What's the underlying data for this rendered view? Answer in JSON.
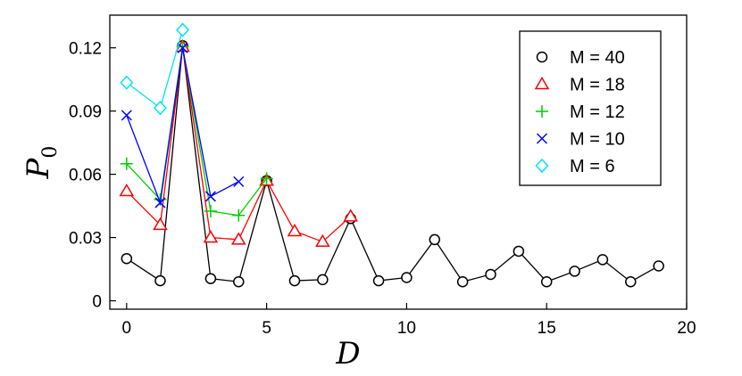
{
  "chart_data": {
    "type": "line",
    "xlabel": "D",
    "ylabel": {
      "main": "P",
      "sub": "0"
    },
    "xlim": [
      -0.6,
      20
    ],
    "ylim": [
      -0.004,
      0.1355
    ],
    "xticks": [
      0,
      5,
      10,
      15,
      20
    ],
    "xtick_labels": [
      "0",
      "5",
      "10",
      "15",
      "20"
    ],
    "yticks": [
      0,
      0.03,
      0.06,
      0.09,
      0.12
    ],
    "ytick_labels": [
      "0",
      "0.03",
      "0.06",
      "0.09",
      "0.12"
    ],
    "grid": false,
    "legend_position": "top-right",
    "series": [
      {
        "name": "M = 40",
        "marker": "circle",
        "color": "#000000",
        "points": [
          [
            0,
            0.02
          ],
          [
            1.2,
            0.0095
          ],
          [
            2,
            0.121
          ],
          [
            3,
            0.0105
          ],
          [
            4,
            0.009
          ],
          [
            5,
            0.057
          ],
          [
            6,
            0.0095
          ],
          [
            7,
            0.01
          ],
          [
            8,
            0.039
          ],
          [
            9,
            0.0095
          ],
          [
            10,
            0.011
          ],
          [
            11,
            0.029
          ],
          [
            12,
            0.009
          ],
          [
            13,
            0.0125
          ],
          [
            14,
            0.0235
          ],
          [
            15,
            0.009
          ],
          [
            16,
            0.014
          ],
          [
            17,
            0.0195
          ],
          [
            18,
            0.009
          ],
          [
            19,
            0.0165
          ]
        ]
      },
      {
        "name": "M = 18",
        "marker": "triangle",
        "color": "#ff0000",
        "points": [
          [
            0,
            0.052
          ],
          [
            1.2,
            0.036
          ],
          [
            2,
            0.1205
          ],
          [
            3,
            0.03
          ],
          [
            4,
            0.029
          ],
          [
            5,
            0.057
          ],
          [
            6,
            0.033
          ],
          [
            7,
            0.028
          ],
          [
            8,
            0.04
          ]
        ]
      },
      {
        "name": "M = 12",
        "marker": "plus",
        "color": "#00cc00",
        "points": [
          [
            0,
            0.065
          ],
          [
            1.2,
            0.048
          ],
          [
            2,
            0.1205
          ],
          [
            3,
            0.0425
          ],
          [
            4,
            0.0405
          ],
          [
            5,
            0.058
          ]
        ]
      },
      {
        "name": "M = 10",
        "marker": "cross",
        "color": "#0000ff",
        "points": [
          [
            0,
            0.088
          ],
          [
            1.2,
            0.0465
          ],
          [
            2,
            0.12
          ],
          [
            3,
            0.0495
          ],
          [
            4,
            0.0565
          ]
        ]
      },
      {
        "name": "M = 6",
        "marker": "diamond",
        "color": "#00e5ee",
        "points": [
          [
            0,
            0.1035
          ],
          [
            1.2,
            0.0915
          ],
          [
            2,
            0.1285
          ]
        ]
      }
    ]
  }
}
